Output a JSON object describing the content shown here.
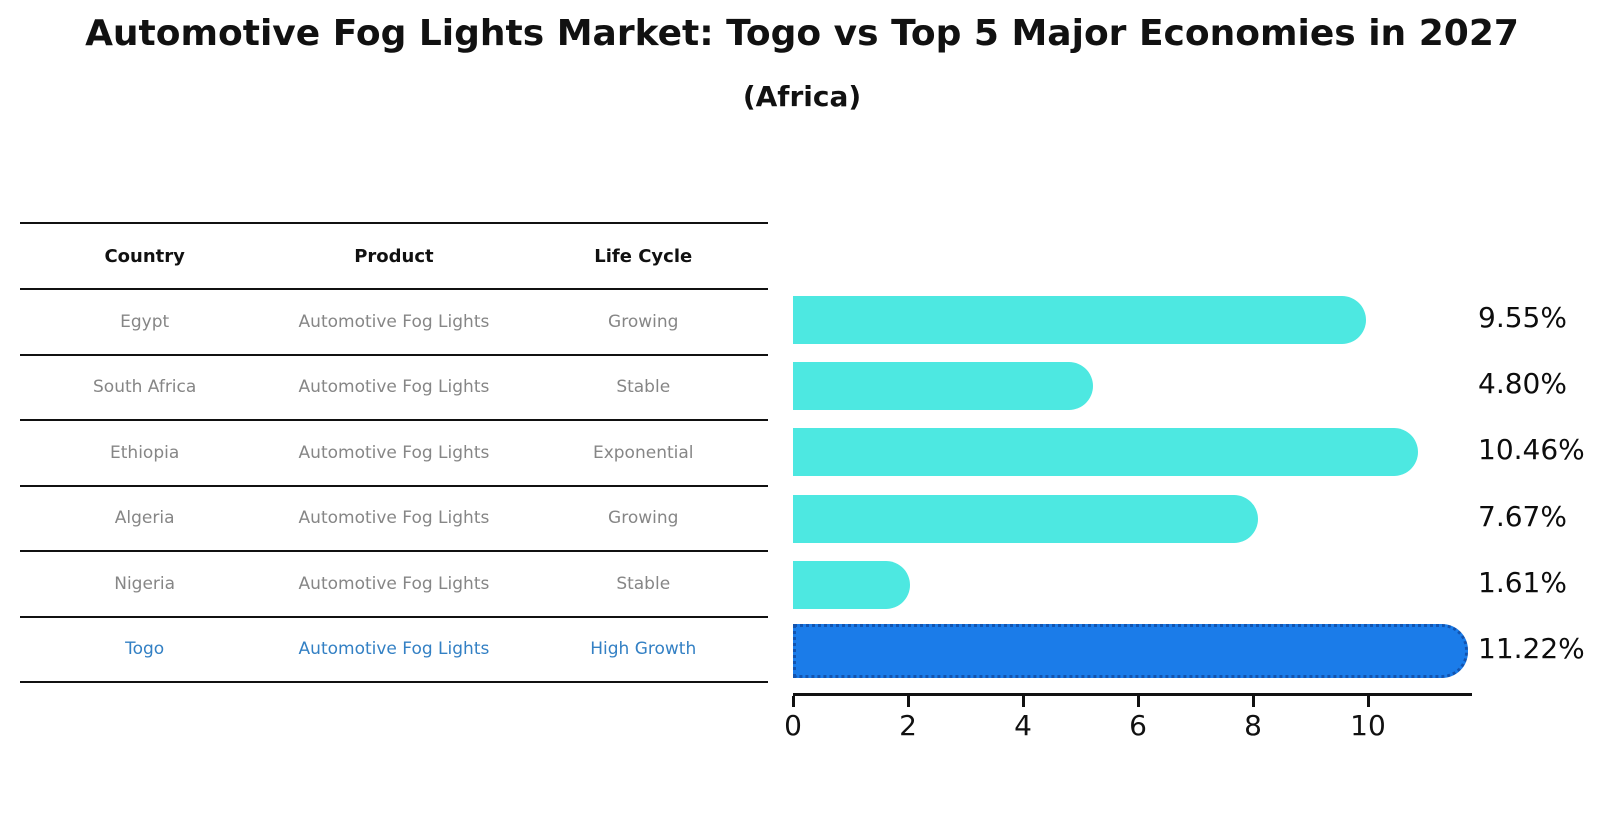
{
  "title": "Automotive Fog Lights Market: Togo vs Top 5 Major Economies in 2027",
  "subtitle": "(Africa)",
  "colors": {
    "bar": "#4de8e1",
    "bar_highlight": "#1b7ce9",
    "bar_highlight_border": "#1254b0",
    "axis": "#111111",
    "header_text": "#111111",
    "table_text": "#868686",
    "highlight_text": "#3380c4",
    "value_text": "#0d0d0d"
  },
  "table": {
    "headers": [
      "Country",
      "Product",
      "Life Cycle"
    ],
    "rows": [
      {
        "country": "Egypt",
        "product": "Automotive Fog Lights",
        "life_cycle": "Growing",
        "highlighted": false
      },
      {
        "country": "South Africa",
        "product": "Automotive Fog Lights",
        "life_cycle": "Stable",
        "highlighted": false
      },
      {
        "country": "Ethiopia",
        "product": "Automotive Fog Lights",
        "life_cycle": "Exponential",
        "highlighted": false
      },
      {
        "country": "Algeria",
        "product": "Automotive Fog Lights",
        "life_cycle": "Growing",
        "highlighted": false
      },
      {
        "country": "Nigeria",
        "product": "Automotive Fog Lights",
        "life_cycle": "Stable",
        "highlighted": false
      },
      {
        "country": "Togo",
        "product": "Automotive Fog Lights",
        "life_cycle": "High Growth",
        "highlighted": true
      }
    ]
  },
  "chart_data": {
    "type": "bar",
    "orientation": "horizontal",
    "title": "Automotive Fog Lights Market: Togo vs Top 5 Major Economies in 2027",
    "subtitle": "(Africa)",
    "categories": [
      "Egypt",
      "South Africa",
      "Ethiopia",
      "Algeria",
      "Nigeria",
      "Togo"
    ],
    "values": [
      9.55,
      4.8,
      10.46,
      7.67,
      1.61,
      11.22
    ],
    "value_labels": [
      "9.55%",
      "4.80%",
      "10.46%",
      "7.67%",
      "1.61%",
      "11.22%"
    ],
    "unit": "percent",
    "xlim": [
      0,
      11.78
    ],
    "xticks": [
      0,
      2,
      4,
      6,
      8,
      10
    ],
    "highlight_category": "Togo",
    "grid": false,
    "legend": false
  }
}
